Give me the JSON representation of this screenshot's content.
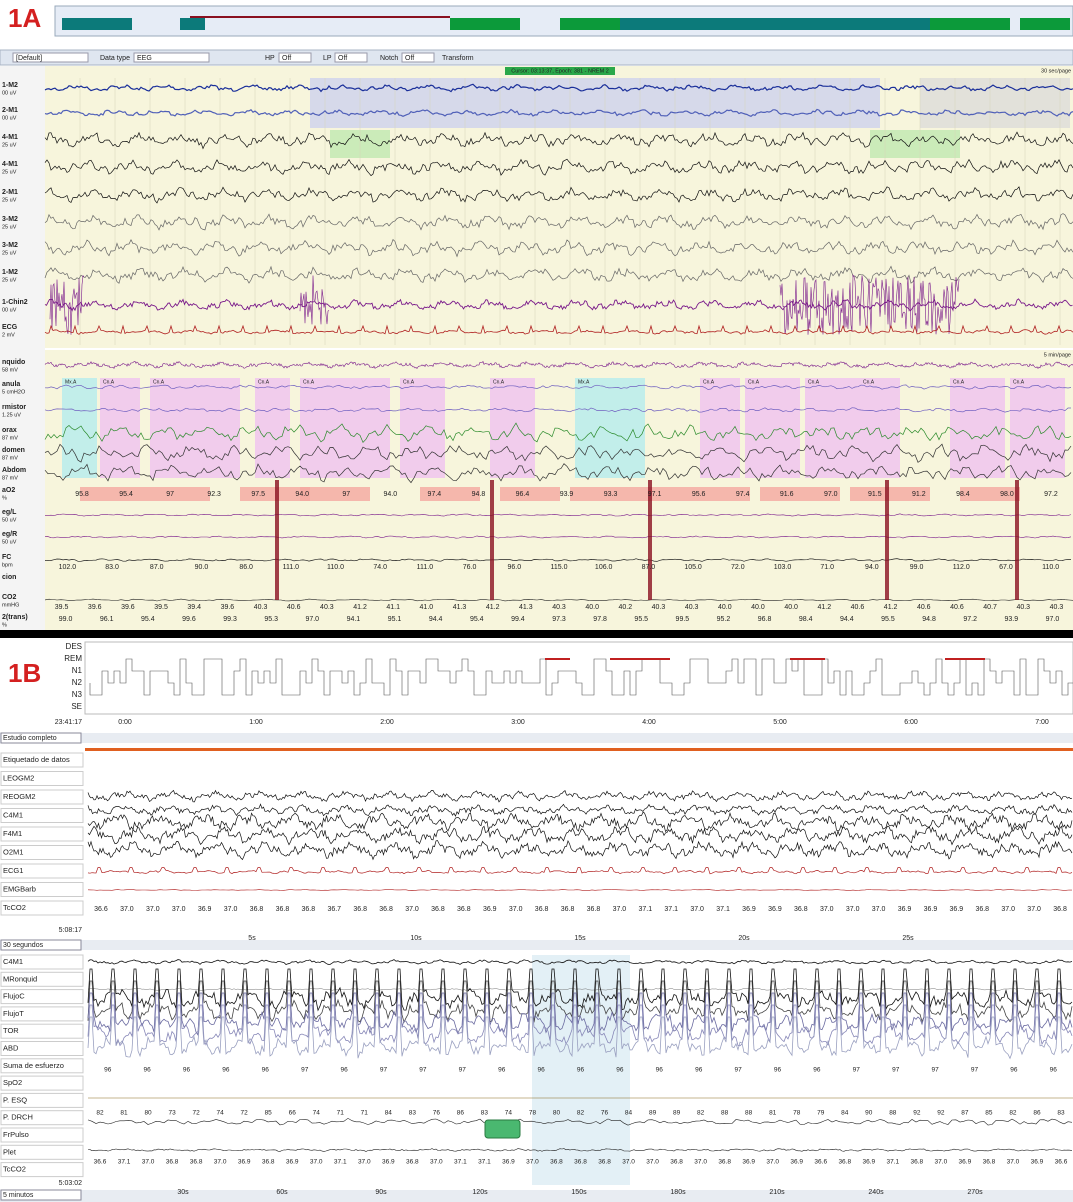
{
  "panel_a": {
    "label": "1A",
    "toolbar": {
      "preset": "[Default]",
      "data_type_label": "Data type",
      "data_type": "EEG",
      "hp_label": "HP",
      "hp": "Off",
      "lp_label": "LP",
      "lp": "Off",
      "notch_label": "Notch",
      "notch": "Off",
      "transform": "Transform"
    },
    "status": "Cursor: 03:13:37, Epoch: 381 - NREM 2",
    "eeg_scale": "30 sec/page",
    "resp_scale": "5 min/page",
    "events": [
      "Mx.A",
      "Cn.A"
    ],
    "channels": [
      {
        "name": "1-M2",
        "unit": "00 uV"
      },
      {
        "name": "2-M1",
        "unit": "00 uV"
      },
      {
        "name": "4-M1",
        "unit": "25 uV"
      },
      {
        "name": "4-M1",
        "unit": "25 uV"
      },
      {
        "name": "2-M1",
        "unit": "25 uV"
      },
      {
        "name": "3-M2",
        "unit": "25 uV"
      },
      {
        "name": "3-M2",
        "unit": "25 uV"
      },
      {
        "name": "1-M2",
        "unit": "25 uV"
      },
      {
        "name": "1-Chin2",
        "unit": "00 uV"
      },
      {
        "name": "ECG",
        "unit": "2 mV"
      },
      {
        "name": "nquido",
        "unit": "58 mV"
      },
      {
        "name": "anula",
        "unit": "5 cmH2O"
      },
      {
        "name": "rmistor",
        "unit": "1.25 uV"
      },
      {
        "name": "orax",
        "unit": "87 mV"
      },
      {
        "name": "domen",
        "unit": "87 mV"
      },
      {
        "name": "Abdom",
        "unit": "87 mV"
      },
      {
        "name": "aO2",
        "unit": "%"
      },
      {
        "name": "eg/L",
        "unit": "50 uV"
      },
      {
        "name": "eg/R",
        "unit": "50 uV"
      },
      {
        "name": "FC",
        "unit": "bpm"
      },
      {
        "name": "cion"
      },
      {
        "name": "CO2",
        "unit": "mmHG"
      },
      {
        "name": "2(trans)",
        "unit": "%"
      }
    ],
    "sao2_values": [
      "95.8",
      "95.4",
      "97",
      "92.3",
      "97.5",
      "94.0",
      "97",
      "94.0",
      "97.4",
      "94.8",
      "96.4",
      "93.9",
      "93.3",
      "97.1",
      "95.6",
      "97.4",
      "91.6",
      "97.0",
      "91.5",
      "91.2",
      "98.4",
      "98.0",
      "97.2"
    ],
    "fc_values": [
      "102.0",
      "83.0",
      "87.0",
      "90.0",
      "86.0",
      "111.0",
      "110.0",
      "74.0",
      "111.0",
      "76.0",
      "96.0",
      "115.0",
      "106.0",
      "87.0",
      "105.0",
      "72.0",
      "103.0",
      "71.0",
      "94.0",
      "99.0",
      "112.0",
      "67.0",
      "110.0"
    ],
    "tcco2_values": [
      "39.5",
      "39.6",
      "39.6",
      "39.5",
      "39.4",
      "39.6",
      "40.3",
      "40.6",
      "40.3",
      "41.2",
      "41.1",
      "41.0",
      "41.3",
      "41.2",
      "41.3",
      "40.3",
      "40.0",
      "40.2",
      "40.3",
      "40.3",
      "40.0",
      "40.0",
      "40.0",
      "41.2",
      "40.6",
      "41.2",
      "40.6",
      "40.6",
      "40.7",
      "40.3",
      "40.3"
    ],
    "trans_values": [
      "99.0",
      "96.1",
      "95.4",
      "99.6",
      "99.3",
      "95.3",
      "97.0",
      "94.1",
      "95.1",
      "94.4",
      "95.4",
      "99.4",
      "97.3",
      "97.8",
      "95.5",
      "99.5",
      "95.2",
      "96.8",
      "98.4",
      "94.4",
      "95.5",
      "94.8",
      "97.2",
      "93.9",
      "97.0"
    ]
  },
  "panel_b": {
    "label": "1B",
    "stages": [
      "DES",
      "REM",
      "N1",
      "N2",
      "N3",
      "SE"
    ],
    "start_time": "23:41:17",
    "hours": [
      "0:00",
      "1:00",
      "2:00",
      "3:00",
      "4:00",
      "5:00",
      "6:00",
      "7:00"
    ],
    "view1": "Estudio completo",
    "channels1": [
      "Etiquetado de datos",
      "LEOGM2",
      "REOGM2",
      "C4M1",
      "F4M1",
      "O2M1",
      "ECG1",
      "EMGBarb",
      "TcCO2"
    ],
    "tcco2_values1": [
      "36.6",
      "37.0",
      "37.0",
      "37.0",
      "36.9",
      "37.0",
      "36.8",
      "36.8",
      "36.8",
      "36.7",
      "36.8",
      "36.8",
      "37.0",
      "36.8",
      "36.8",
      "36.9",
      "37.0",
      "36.8",
      "36.8",
      "36.8",
      "37.0",
      "37.1",
      "37.1",
      "37.0",
      "37.1",
      "36.9",
      "36.9",
      "36.8",
      "37.0",
      "37.0",
      "37.0",
      "36.9",
      "36.9",
      "36.9",
      "36.8",
      "37.0",
      "37.0",
      "36.8"
    ],
    "time1": "5:08:17",
    "view2": "30 segundos",
    "ticks1": [
      "5s",
      "10s",
      "15s",
      "20s",
      "25s"
    ],
    "channels2": [
      "C4M1",
      "MRonquid",
      "FlujoC",
      "FlujoT",
      "TOR",
      "ABD",
      "Suma de esfuerzo",
      "SpO2",
      "P. ESQ",
      "P. DRCH",
      "FrPulso",
      "Plet",
      "TcCO2"
    ],
    "spo2_values": [
      "96",
      "96",
      "96",
      "96",
      "96",
      "97",
      "96",
      "97",
      "97",
      "97",
      "96",
      "96",
      "96",
      "96",
      "96",
      "96",
      "97",
      "96",
      "96",
      "97",
      "97",
      "97",
      "97",
      "96",
      "96"
    ],
    "pulse_values": [
      "82",
      "81",
      "80",
      "73",
      "72",
      "74",
      "72",
      "85",
      "66",
      "74",
      "71",
      "71",
      "84",
      "83",
      "76",
      "86",
      "83",
      "74",
      "78",
      "80",
      "82",
      "76",
      "84",
      "89",
      "89",
      "82",
      "88",
      "88",
      "81",
      "78",
      "79",
      "84",
      "90",
      "88",
      "92",
      "92",
      "87",
      "85",
      "82",
      "86",
      "83"
    ],
    "tcco2_values2": [
      "36.6",
      "37.1",
      "37.0",
      "36.8",
      "36.8",
      "37.0",
      "36.9",
      "36.8",
      "36.9",
      "37.0",
      "37.1",
      "37.0",
      "36.9",
      "36.8",
      "37.0",
      "37.1",
      "37.1",
      "36.9",
      "37.0",
      "36.8",
      "36.8",
      "36.8",
      "37.0",
      "37.0",
      "36.8",
      "37.0",
      "36.8",
      "36.9",
      "37.0",
      "36.9",
      "36.6",
      "36.8",
      "36.9",
      "37.1",
      "36.8",
      "37.0",
      "36.9",
      "36.8",
      "37.0",
      "36.9",
      "36.6"
    ],
    "time2": "5:03:02",
    "view3": "5 minutos",
    "ticks2": [
      "30s",
      "60s",
      "90s",
      "120s",
      "150s",
      "180s",
      "210s",
      "240s",
      "270s"
    ]
  }
}
